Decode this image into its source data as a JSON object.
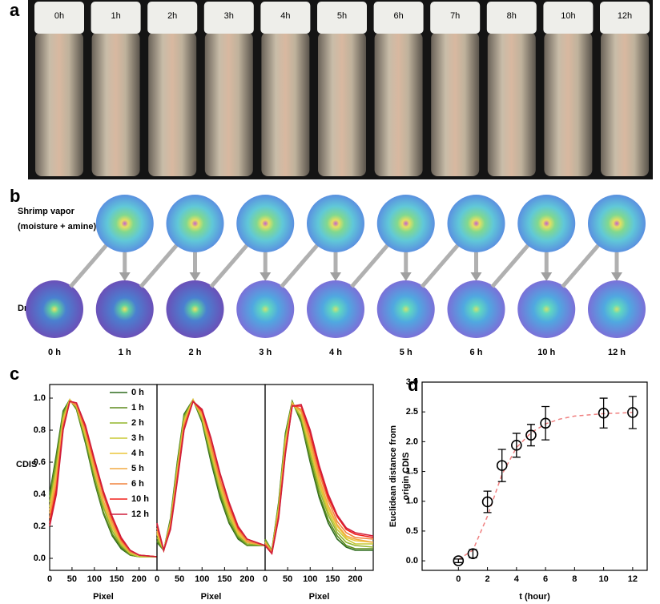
{
  "panel_a": {
    "label": "a",
    "vial_labels": [
      "0h",
      "1h",
      "2h",
      "3h",
      "4h",
      "5h",
      "6h",
      "7h",
      "8h",
      "10h",
      "12h"
    ]
  },
  "panel_b": {
    "label": "b",
    "vapor_label": "Shrimp vapor",
    "vapor_note": "(moisture + amine)",
    "dry_label": "Dry N₂",
    "time_labels": [
      "0 h",
      "1 h",
      "2 h",
      "3 h",
      "4 h",
      "5 h",
      "6 h",
      "10 h",
      "12 h"
    ]
  },
  "chart_data": [
    {
      "type": "line",
      "panel_label": "c",
      "ylabel": "CDIS",
      "xlabel": "Pixel",
      "legend": "upper right",
      "x": [
        0,
        15,
        30,
        45,
        60,
        80,
        100,
        120,
        140,
        160,
        180,
        200,
        240
      ],
      "xlim": [
        0,
        240
      ],
      "xticks": [
        0,
        50,
        100,
        150,
        200
      ],
      "ylim": [
        -0.075,
        1.085
      ],
      "yticks": [
        {
          "value": 0,
          "label": "0.0"
        },
        0.2,
        0.4,
        0.6,
        0.8,
        {
          "value": 1,
          "label": "1.0"
        }
      ],
      "series": [
        {
          "name": "0 h",
          "color": "#2e6b1e",
          "values": [
            0.4,
            0.65,
            0.92,
            0.99,
            0.93,
            0.72,
            0.48,
            0.28,
            0.14,
            0.06,
            0.02,
            0.01,
            0.01
          ]
        },
        {
          "name": "1 h",
          "color": "#5e8c1e",
          "values": [
            0.38,
            0.63,
            0.91,
            0.99,
            0.93,
            0.73,
            0.49,
            0.29,
            0.15,
            0.07,
            0.02,
            0.01,
            0.01
          ]
        },
        {
          "name": "2 h",
          "color": "#93b52c",
          "values": [
            0.35,
            0.59,
            0.89,
            0.99,
            0.94,
            0.75,
            0.52,
            0.32,
            0.17,
            0.08,
            0.03,
            0.01,
            0.01
          ]
        },
        {
          "name": "3 h",
          "color": "#c9c834",
          "values": [
            0.32,
            0.55,
            0.87,
            0.99,
            0.95,
            0.76,
            0.54,
            0.34,
            0.19,
            0.09,
            0.03,
            0.01,
            0.01
          ]
        },
        {
          "name": "4 h",
          "color": "#ecc63c",
          "values": [
            0.3,
            0.53,
            0.86,
            0.99,
            0.95,
            0.78,
            0.55,
            0.35,
            0.2,
            0.1,
            0.04,
            0.02,
            0.01
          ]
        },
        {
          "name": "5 h",
          "color": "#f2aa42",
          "values": [
            0.28,
            0.5,
            0.85,
            0.98,
            0.95,
            0.79,
            0.56,
            0.36,
            0.21,
            0.1,
            0.04,
            0.02,
            0.01
          ]
        },
        {
          "name": "6 h",
          "color": "#f0843e",
          "values": [
            0.25,
            0.46,
            0.83,
            0.98,
            0.96,
            0.8,
            0.59,
            0.39,
            0.23,
            0.11,
            0.04,
            0.02,
            0.01
          ]
        },
        {
          "name": "10 h",
          "color": "#f0201c",
          "values": [
            0.22,
            0.43,
            0.81,
            0.98,
            0.97,
            0.82,
            0.61,
            0.41,
            0.25,
            0.12,
            0.05,
            0.02,
            0.01
          ]
        },
        {
          "name": "12 h",
          "color": "#cf1f3c",
          "values": [
            0.2,
            0.4,
            0.8,
            0.98,
            0.97,
            0.83,
            0.62,
            0.42,
            0.26,
            0.13,
            0.05,
            0.02,
            0.01
          ]
        }
      ]
    },
    {
      "type": "line",
      "xlabel": "Pixel",
      "x": [
        0,
        15,
        30,
        45,
        60,
        80,
        100,
        120,
        140,
        160,
        180,
        200,
        240
      ],
      "xlim": [
        0,
        240
      ],
      "xticks": [
        0,
        50,
        100,
        150,
        200
      ],
      "ylim": [
        -0.075,
        1.085
      ],
      "series": [
        {
          "color": "#2e6b1e",
          "values": [
            0.1,
            0.05,
            0.25,
            0.6,
            0.9,
            0.99,
            0.85,
            0.6,
            0.38,
            0.22,
            0.12,
            0.08,
            0.08
          ]
        },
        {
          "color": "#5e8c1e",
          "values": [
            0.11,
            0.05,
            0.24,
            0.59,
            0.89,
            0.99,
            0.86,
            0.62,
            0.4,
            0.23,
            0.13,
            0.08,
            0.08
          ]
        },
        {
          "color": "#93b52c",
          "values": [
            0.13,
            0.05,
            0.23,
            0.57,
            0.88,
            0.99,
            0.87,
            0.64,
            0.42,
            0.25,
            0.14,
            0.09,
            0.08
          ]
        },
        {
          "color": "#c9c834",
          "values": [
            0.15,
            0.05,
            0.22,
            0.55,
            0.86,
            0.99,
            0.88,
            0.66,
            0.44,
            0.27,
            0.15,
            0.1,
            0.08
          ]
        },
        {
          "color": "#ecc63c",
          "values": [
            0.16,
            0.05,
            0.22,
            0.54,
            0.85,
            0.99,
            0.89,
            0.68,
            0.46,
            0.29,
            0.16,
            0.1,
            0.08
          ]
        },
        {
          "color": "#f2aa42",
          "values": [
            0.17,
            0.05,
            0.21,
            0.53,
            0.84,
            0.98,
            0.9,
            0.69,
            0.47,
            0.3,
            0.17,
            0.1,
            0.08
          ]
        },
        {
          "color": "#f0843e",
          "values": [
            0.19,
            0.05,
            0.2,
            0.51,
            0.83,
            0.98,
            0.91,
            0.71,
            0.49,
            0.32,
            0.18,
            0.11,
            0.08
          ]
        },
        {
          "color": "#f0201c",
          "values": [
            0.21,
            0.05,
            0.19,
            0.49,
            0.81,
            0.98,
            0.92,
            0.74,
            0.52,
            0.34,
            0.19,
            0.12,
            0.08
          ]
        },
        {
          "color": "#cf1f3c",
          "values": [
            0.22,
            0.05,
            0.18,
            0.48,
            0.8,
            0.98,
            0.93,
            0.75,
            0.53,
            0.35,
            0.2,
            0.12,
            0.08
          ]
        }
      ]
    },
    {
      "type": "line",
      "xlabel": "Pixel",
      "x": [
        0,
        15,
        30,
        45,
        60,
        80,
        100,
        120,
        140,
        160,
        180,
        200,
        240
      ],
      "xlim": [
        0,
        240
      ],
      "xticks": [
        0,
        50,
        100,
        150,
        200
      ],
      "ylim": [
        -0.075,
        1.085
      ],
      "series": [
        {
          "color": "#2e6b1e",
          "values": [
            0.12,
            0.05,
            0.35,
            0.78,
            0.98,
            0.85,
            0.6,
            0.38,
            0.22,
            0.12,
            0.07,
            0.05,
            0.05
          ]
        },
        {
          "color": "#5e8c1e",
          "values": [
            0.12,
            0.05,
            0.34,
            0.77,
            0.98,
            0.86,
            0.62,
            0.4,
            0.24,
            0.14,
            0.08,
            0.06,
            0.06
          ]
        },
        {
          "color": "#93b52c",
          "values": [
            0.11,
            0.05,
            0.33,
            0.75,
            0.97,
            0.88,
            0.65,
            0.43,
            0.27,
            0.16,
            0.1,
            0.08,
            0.07
          ]
        },
        {
          "color": "#c9c834",
          "values": [
            0.1,
            0.04,
            0.31,
            0.73,
            0.97,
            0.89,
            0.68,
            0.46,
            0.29,
            0.18,
            0.12,
            0.09,
            0.09
          ]
        },
        {
          "color": "#ecc63c",
          "values": [
            0.1,
            0.04,
            0.3,
            0.72,
            0.97,
            0.91,
            0.7,
            0.48,
            0.31,
            0.2,
            0.13,
            0.11,
            0.1
          ]
        },
        {
          "color": "#f2aa42",
          "values": [
            0.1,
            0.04,
            0.29,
            0.7,
            0.96,
            0.92,
            0.72,
            0.5,
            0.33,
            0.21,
            0.14,
            0.12,
            0.1
          ]
        },
        {
          "color": "#f0843e",
          "values": [
            0.09,
            0.04,
            0.28,
            0.68,
            0.96,
            0.93,
            0.75,
            0.53,
            0.36,
            0.23,
            0.16,
            0.13,
            0.12
          ]
        },
        {
          "color": "#f0201c",
          "values": [
            0.08,
            0.03,
            0.26,
            0.66,
            0.95,
            0.95,
            0.78,
            0.56,
            0.38,
            0.26,
            0.18,
            0.15,
            0.13
          ]
        },
        {
          "color": "#cf1f3c",
          "values": [
            0.08,
            0.03,
            0.25,
            0.65,
            0.95,
            0.96,
            0.8,
            0.58,
            0.4,
            0.27,
            0.19,
            0.16,
            0.14
          ]
        }
      ]
    },
    {
      "type": "scatter",
      "panel_label": "d",
      "xlabel": "t (hour)",
      "ylabel_lines": [
        "Euclidean distance from",
        "origin CDIS"
      ],
      "x": [
        0,
        1,
        2,
        3,
        4,
        5,
        6,
        10,
        12
      ],
      "values": [
        0.0,
        0.12,
        0.99,
        1.6,
        1.94,
        2.11,
        2.31,
        2.48,
        2.49
      ],
      "errors": [
        0.03,
        0.07,
        0.18,
        0.27,
        0.2,
        0.18,
        0.28,
        0.25,
        0.27
      ],
      "color": "#000000",
      "fit": {
        "color": "#f08080",
        "x": [
          0,
          1,
          2,
          3,
          4,
          5,
          6,
          7,
          8,
          9,
          10,
          11,
          12
        ],
        "values": [
          0.02,
          0.18,
          0.75,
          1.45,
          1.9,
          2.15,
          2.3,
          2.38,
          2.43,
          2.45,
          2.47,
          2.48,
          2.49
        ]
      },
      "xlim": [
        -2.5,
        13
      ],
      "xticks": [
        0,
        2,
        4,
        6,
        8,
        10,
        12
      ],
      "ylim": [
        -0.16,
        3.0
      ],
      "yticks": [
        {
          "value": 0,
          "label": "0.0"
        },
        0.5,
        {
          "value": 1,
          "label": "1.0"
        },
        1.5,
        {
          "value": 2,
          "label": "2.0"
        },
        2.5,
        {
          "value": 3,
          "label": "3.0"
        }
      ]
    }
  ]
}
